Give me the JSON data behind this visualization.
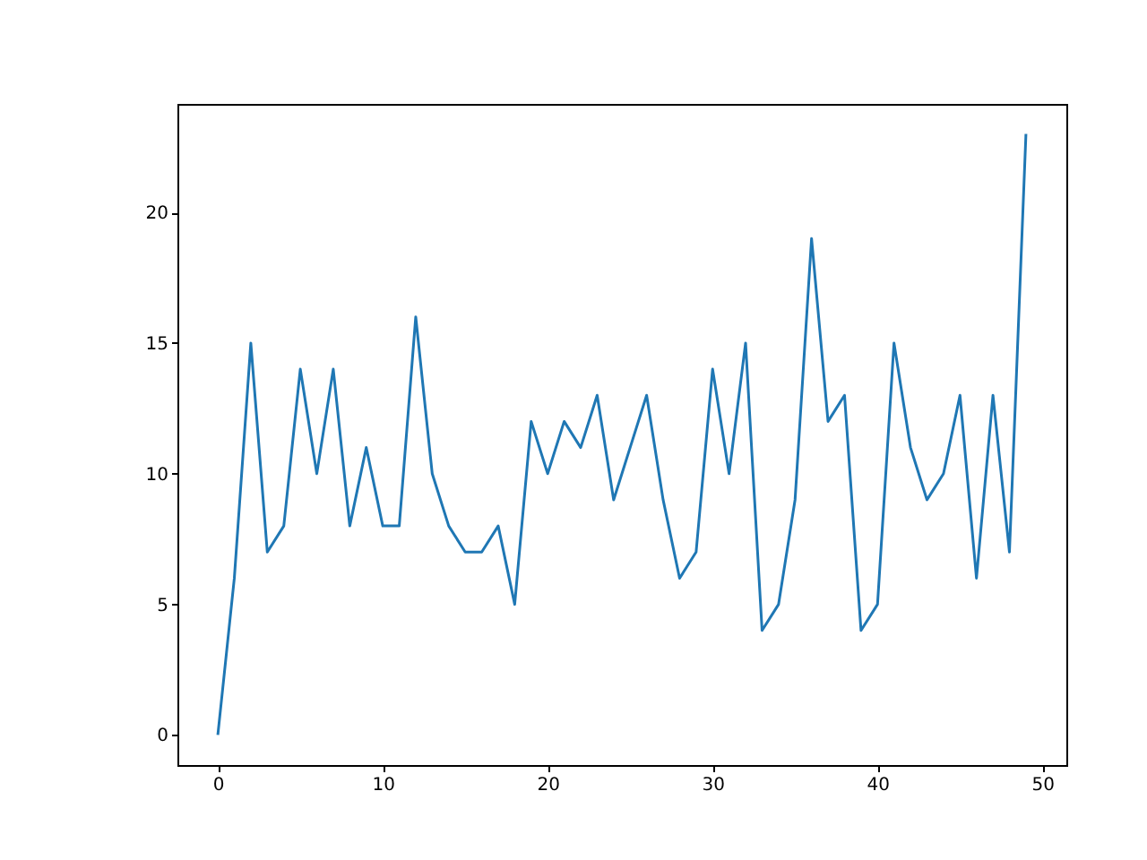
{
  "chart_data": {
    "type": "line",
    "x": [
      0,
      1,
      2,
      3,
      4,
      5,
      6,
      7,
      8,
      9,
      10,
      11,
      12,
      13,
      14,
      15,
      16,
      17,
      18,
      19,
      20,
      21,
      22,
      23,
      24,
      25,
      26,
      27,
      28,
      29,
      30,
      31,
      32,
      33,
      34,
      35,
      36,
      37,
      38,
      39,
      40,
      41,
      42,
      43,
      44,
      45,
      46,
      47,
      48,
      49
    ],
    "series": [
      {
        "color": "#1f77b4",
        "values": [
          0,
          6,
          15,
          7,
          8,
          14,
          10,
          14,
          8,
          11,
          8,
          8,
          16,
          10,
          8,
          7,
          7,
          8,
          5,
          12,
          10,
          12,
          11,
          13,
          9,
          11,
          13,
          9,
          6,
          7,
          14,
          10,
          15,
          4,
          5,
          9,
          19,
          12,
          13,
          4,
          5,
          15,
          11,
          9,
          10,
          13,
          6,
          13,
          7,
          23
        ]
      }
    ],
    "xlim": [
      -2.45,
      51.45
    ],
    "xticks": [
      0,
      10,
      20,
      30,
      40,
      50
    ],
    "ylim": [
      -1.15,
      24.15
    ],
    "yticks": [
      0,
      5,
      10,
      15,
      20
    ],
    "grid": false,
    "legend": false,
    "marker": "none",
    "line_style": "solid"
  }
}
